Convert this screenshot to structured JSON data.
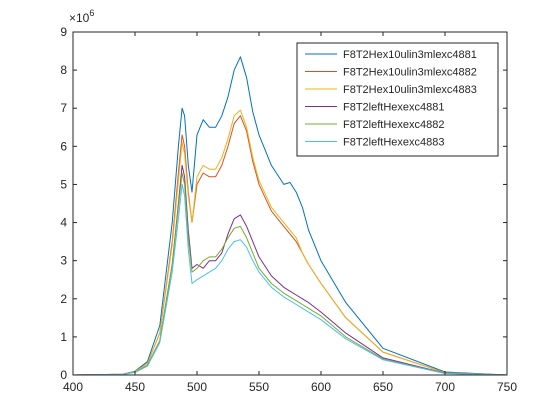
{
  "chart_data": {
    "type": "line",
    "title": "",
    "xlabel": "",
    "ylabel": "",
    "xlim": [
      400,
      750
    ],
    "ylim": [
      0,
      9000000
    ],
    "y_exponent_label": "×10",
    "y_exponent_power": "6",
    "x_ticks": [
      400,
      450,
      500,
      550,
      600,
      650,
      700,
      750
    ],
    "x_tick_labels": [
      "400",
      "450",
      "500",
      "550",
      "600",
      "650",
      "700",
      "750"
    ],
    "y_ticks": [
      0,
      1000000,
      2000000,
      3000000,
      4000000,
      5000000,
      6000000,
      7000000,
      8000000,
      9000000
    ],
    "y_tick_labels": [
      "0",
      "1",
      "2",
      "3",
      "4",
      "5",
      "6",
      "7",
      "8",
      "9"
    ],
    "grid": false,
    "legend_position": "top-right",
    "series": [
      {
        "name": "F8T2Hex10ulin3mlexc4881",
        "color": "#0072BD",
        "x": [
          400,
          440,
          450,
          460,
          470,
          480,
          485,
          488,
          490,
          493,
          496,
          500,
          505,
          510,
          515,
          520,
          525,
          530,
          535,
          540,
          545,
          550,
          560,
          570,
          575,
          580,
          585,
          590,
          600,
          620,
          650,
          700,
          750
        ],
        "y": [
          0,
          20000,
          100000,
          350000,
          1300000,
          4000000,
          6000000,
          7000000,
          6800000,
          5500000,
          4800000,
          6300000,
          6700000,
          6500000,
          6500000,
          6800000,
          7300000,
          8000000,
          8350000,
          7800000,
          6900000,
          6300000,
          5500000,
          5000000,
          5050000,
          4800000,
          4400000,
          3800000,
          3000000,
          1900000,
          700000,
          80000,
          0
        ]
      },
      {
        "name": "F8T2Hex10ulin3mlexc4882",
        "color": "#D95319",
        "x": [
          400,
          440,
          450,
          460,
          470,
          480,
          485,
          488,
          490,
          493,
          496,
          500,
          505,
          510,
          515,
          520,
          525,
          530,
          535,
          540,
          545,
          550,
          560,
          570,
          575,
          580,
          585,
          590,
          600,
          620,
          650,
          700,
          750
        ],
        "y": [
          0,
          20000,
          90000,
          300000,
          1100000,
          3500000,
          5300000,
          6300000,
          6000000,
          4800000,
          4000000,
          5000000,
          5300000,
          5200000,
          5200000,
          5500000,
          6000000,
          6600000,
          6800000,
          6400000,
          5600000,
          5000000,
          4300000,
          3900000,
          3700000,
          3500000,
          3200000,
          2900000,
          2400000,
          1500000,
          600000,
          60000,
          0
        ]
      },
      {
        "name": "F8T2Hex10ulin3mlexc4883",
        "color": "#EDB120",
        "x": [
          400,
          440,
          450,
          460,
          470,
          480,
          485,
          488,
          490,
          493,
          496,
          500,
          505,
          510,
          515,
          520,
          525,
          530,
          535,
          540,
          545,
          550,
          560,
          570,
          575,
          580,
          585,
          590,
          600,
          620,
          650,
          700,
          750
        ],
        "y": [
          0,
          20000,
          90000,
          300000,
          1100000,
          3400000,
          5100000,
          6100000,
          5800000,
          4700000,
          4000000,
          5200000,
          5500000,
          5400000,
          5400000,
          5700000,
          6200000,
          6800000,
          6950000,
          6500000,
          5700000,
          5100000,
          4400000,
          4000000,
          3800000,
          3600000,
          3200000,
          2900000,
          2400000,
          1500000,
          600000,
          60000,
          0
        ]
      },
      {
        "name": "F8T2leftHexexc4881",
        "color": "#7E2F8E",
        "x": [
          400,
          440,
          450,
          460,
          470,
          480,
          485,
          488,
          490,
          493,
          496,
          500,
          505,
          510,
          515,
          520,
          525,
          530,
          535,
          540,
          545,
          550,
          560,
          570,
          575,
          580,
          585,
          590,
          600,
          620,
          650,
          700,
          750
        ],
        "y": [
          0,
          15000,
          70000,
          250000,
          900000,
          2900000,
          4500000,
          5500000,
          5200000,
          3800000,
          2800000,
          2900000,
          2800000,
          3000000,
          3000000,
          3200000,
          3700000,
          4100000,
          4200000,
          3900000,
          3500000,
          3100000,
          2600000,
          2300000,
          2200000,
          2100000,
          2000000,
          1900000,
          1650000,
          1100000,
          450000,
          50000,
          0
        ]
      },
      {
        "name": "F8T2leftHexexc4882",
        "color": "#77AC30",
        "x": [
          400,
          440,
          450,
          460,
          470,
          480,
          485,
          488,
          490,
          493,
          496,
          500,
          505,
          510,
          515,
          520,
          525,
          530,
          535,
          540,
          545,
          550,
          560,
          570,
          575,
          580,
          585,
          590,
          600,
          620,
          650,
          700,
          750
        ],
        "y": [
          0,
          15000,
          70000,
          250000,
          900000,
          2900000,
          4400000,
          5300000,
          5000000,
          3600000,
          2700000,
          2800000,
          3000000,
          3100000,
          3100000,
          3300000,
          3600000,
          3850000,
          3900000,
          3600000,
          3200000,
          2800000,
          2400000,
          2150000,
          2050000,
          1950000,
          1850000,
          1750000,
          1550000,
          1000000,
          420000,
          45000,
          0
        ]
      },
      {
        "name": "F8T2leftHexexc4883",
        "color": "#4DBEEE",
        "x": [
          400,
          440,
          450,
          460,
          470,
          480,
          485,
          488,
          490,
          493,
          496,
          500,
          505,
          510,
          515,
          520,
          525,
          530,
          535,
          540,
          545,
          550,
          560,
          570,
          575,
          580,
          585,
          590,
          600,
          620,
          650,
          700,
          750
        ],
        "y": [
          0,
          15000,
          70000,
          230000,
          850000,
          2700000,
          4100000,
          5000000,
          4700000,
          3300000,
          2400000,
          2500000,
          2600000,
          2700000,
          2800000,
          3000000,
          3300000,
          3500000,
          3550000,
          3350000,
          3000000,
          2700000,
          2300000,
          2050000,
          1950000,
          1850000,
          1750000,
          1650000,
          1450000,
          950000,
          400000,
          40000,
          0
        ]
      }
    ]
  }
}
